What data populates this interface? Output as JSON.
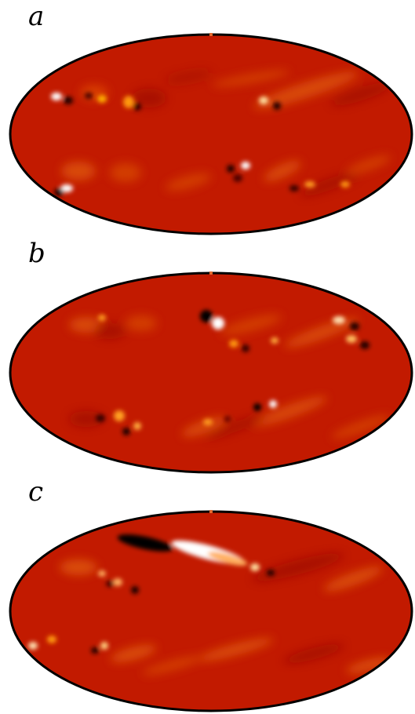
{
  "panels": [
    {
      "label": "a"
    },
    {
      "label": "b"
    },
    {
      "label": "c"
    }
  ],
  "colors": {
    "background": "#c21a00",
    "outline": "#000000",
    "hot": "#ffffff",
    "warm": "#ff8a00",
    "cold": "#1a0000"
  }
}
